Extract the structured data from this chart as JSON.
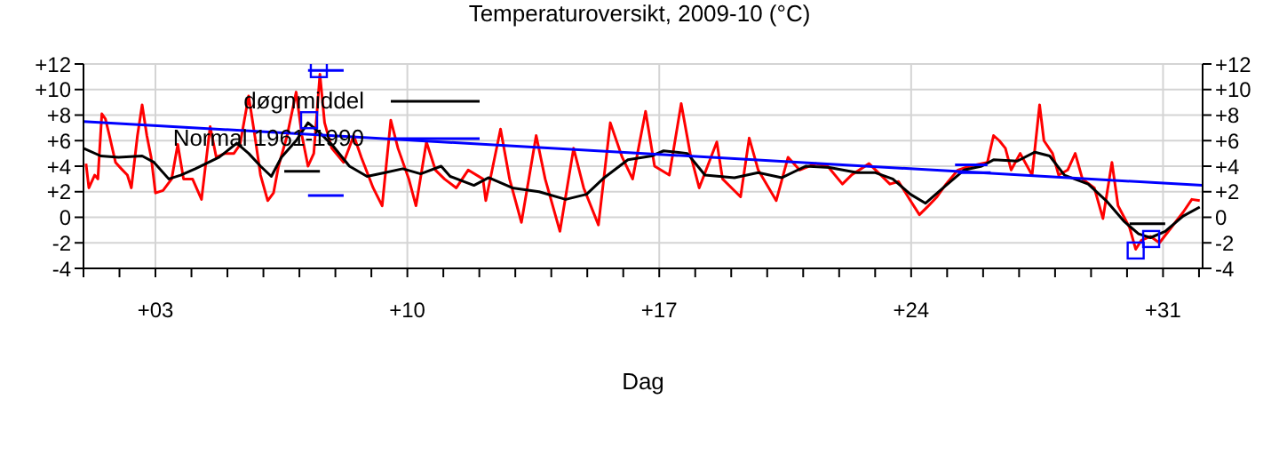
{
  "chart_data": {
    "type": "line",
    "title": "Temperaturoversikt, 2009-10 (°C)",
    "xlabel": "Dag",
    "xlim": [
      1,
      32.1
    ],
    "xticks": [
      {
        "value": 1,
        "label": null
      },
      {
        "value": 2,
        "label": null
      },
      {
        "value": 3,
        "label": "+03"
      },
      {
        "value": 4,
        "label": null
      },
      {
        "value": 5,
        "label": null
      },
      {
        "value": 6,
        "label": null
      },
      {
        "value": 7,
        "label": null
      },
      {
        "value": 8,
        "label": null
      },
      {
        "value": 9,
        "label": null
      },
      {
        "value": 10,
        "label": "+10"
      },
      {
        "value": 11,
        "label": null
      },
      {
        "value": 12,
        "label": null
      },
      {
        "value": 13,
        "label": null
      },
      {
        "value": 14,
        "label": null
      },
      {
        "value": 15,
        "label": null
      },
      {
        "value": 16,
        "label": null
      },
      {
        "value": 17,
        "label": "+17"
      },
      {
        "value": 18,
        "label": null
      },
      {
        "value": 19,
        "label": null
      },
      {
        "value": 20,
        "label": null
      },
      {
        "value": 21,
        "label": null
      },
      {
        "value": 22,
        "label": null
      },
      {
        "value": 23,
        "label": null
      },
      {
        "value": 24,
        "label": "+24"
      },
      {
        "value": 25,
        "label": null
      },
      {
        "value": 26,
        "label": null
      },
      {
        "value": 27,
        "label": null
      },
      {
        "value": 28,
        "label": null
      },
      {
        "value": 29,
        "label": null
      },
      {
        "value": 30,
        "label": null
      },
      {
        "value": 31,
        "label": "+31"
      },
      {
        "value": 32,
        "label": null
      }
    ],
    "ylim": [
      -4,
      12
    ],
    "yticks": [
      {
        "value": -4,
        "label": "-4"
      },
      {
        "value": -2,
        "label": "-2"
      },
      {
        "value": 0,
        "label": "0"
      },
      {
        "value": 2,
        "label": "+2"
      },
      {
        "value": 4,
        "label": "+4"
      },
      {
        "value": 6,
        "label": "+6"
      },
      {
        "value": 8,
        "label": "+8"
      },
      {
        "value": 10,
        "label": "+10"
      },
      {
        "value": 12,
        "label": "+12"
      }
    ],
    "y2lim": [
      -4,
      12
    ],
    "y2ticks": [
      {
        "value": -4,
        "label": "-4"
      },
      {
        "value": -2,
        "label": "-2"
      },
      {
        "value": 0,
        "label": "0"
      },
      {
        "value": 2,
        "label": "+2"
      },
      {
        "value": 4,
        "label": "+4"
      },
      {
        "value": 6,
        "label": "+6"
      },
      {
        "value": 8,
        "label": "+8"
      },
      {
        "value": 10,
        "label": "+10"
      },
      {
        "value": 12,
        "label": "+12"
      }
    ],
    "grid": true,
    "legend": "top left",
    "line_style": "solid",
    "series": [
      {
        "color": "#ff0000",
        "x": [
          1.07,
          1.15,
          1.31,
          1.4,
          1.51,
          1.61,
          1.72,
          1.89,
          2.05,
          2.22,
          2.33,
          2.5,
          2.63,
          2.76,
          2.88,
          3.0,
          3.21,
          3.45,
          3.62,
          3.78,
          4.03,
          4.28,
          4.52,
          4.69,
          4.93,
          5.18,
          5.35,
          5.59,
          5.76,
          5.92,
          6.12,
          6.28,
          6.42,
          6.66,
          6.91,
          7.07,
          7.24,
          7.4,
          7.57,
          7.7,
          7.9,
          8.23,
          8.51,
          8.72,
          9.05,
          9.3,
          9.54,
          9.74,
          10.04,
          10.24,
          10.53,
          10.78,
          11.03,
          11.36,
          11.69,
          12.1,
          12.18,
          12.59,
          12.84,
          13.17,
          13.58,
          13.83,
          14.24,
          14.62,
          14.9,
          15.31,
          15.64,
          15.97,
          16.26,
          16.62,
          16.87,
          17.28,
          17.61,
          17.86,
          18.11,
          18.6,
          18.76,
          19.26,
          19.5,
          19.75,
          20.25,
          20.58,
          20.9,
          21.35,
          21.68,
          22.09,
          22.34,
          22.83,
          23.16,
          23.41,
          23.65,
          23.98,
          24.23,
          24.48,
          24.72,
          24.97,
          25.3,
          25.63,
          26.12,
          26.29,
          26.45,
          26.62,
          26.78,
          27.03,
          27.36,
          27.57,
          27.69,
          27.93,
          28.1,
          28.35,
          28.56,
          28.76,
          29.09,
          29.33,
          29.58,
          29.75,
          30.07,
          30.24,
          30.4,
          30.65,
          30.9,
          31.23,
          31.56,
          31.8,
          32.02
        ],
        "values": [
          4.2,
          2.3,
          3.3,
          3.0,
          8.1,
          7.7,
          6.4,
          4.3,
          3.8,
          3.3,
          2.3,
          6.4,
          8.8,
          6.4,
          4.7,
          1.9,
          2.1,
          3.0,
          5.7,
          3.0,
          3.0,
          1.4,
          7.1,
          4.7,
          5.0,
          5.0,
          5.7,
          9.5,
          6.4,
          3.3,
          1.3,
          1.9,
          4.0,
          6.4,
          9.8,
          6.4,
          4.0,
          5.0,
          11.2,
          7.4,
          5.4,
          4.3,
          6.4,
          4.7,
          2.3,
          0.9,
          7.6,
          5.4,
          3.0,
          0.9,
          5.9,
          3.7,
          3.0,
          2.3,
          3.7,
          3.0,
          1.3,
          6.9,
          3.0,
          -0.4,
          6.4,
          3.0,
          -1.1,
          5.4,
          2.3,
          -0.6,
          7.4,
          4.7,
          3.0,
          8.3,
          4.0,
          3.3,
          8.9,
          5.0,
          2.3,
          5.9,
          3.0,
          1.6,
          6.2,
          3.7,
          1.3,
          4.7,
          3.7,
          4.2,
          4.0,
          2.6,
          3.3,
          4.2,
          3.3,
          2.6,
          2.8,
          1.3,
          0.2,
          0.9,
          1.6,
          2.6,
          3.7,
          4.0,
          4.3,
          6.4,
          6.0,
          5.4,
          3.7,
          5.0,
          3.3,
          8.8,
          6.0,
          5.0,
          3.3,
          3.7,
          5.0,
          3.0,
          2.3,
          -0.1,
          4.3,
          0.9,
          -0.8,
          -2.5,
          -1.8,
          -1.5,
          -2.0,
          -0.8,
          0.4,
          1.4,
          1.3
        ]
      },
      {
        "name": "døgnmiddel",
        "color": "#000000",
        "x": [
          1.0,
          1.48,
          1.97,
          2.63,
          2.96,
          3.37,
          3.7,
          4.11,
          4.77,
          5.26,
          5.59,
          5.92,
          6.22,
          6.5,
          6.91,
          7.24,
          7.57,
          7.9,
          8.39,
          8.88,
          9.38,
          9.87,
          10.37,
          10.94,
          11.19,
          11.85,
          12.26,
          12.92,
          13.66,
          14.4,
          14.98,
          15.47,
          16.13,
          16.79,
          17.12,
          17.78,
          18.27,
          19.09,
          19.75,
          20.41,
          21.07,
          21.73,
          22.5,
          22.99,
          23.49,
          23.98,
          24.4,
          24.89,
          25.47,
          25.96,
          26.29,
          26.95,
          27.44,
          27.85,
          28.26,
          28.92,
          29.42,
          29.91,
          30.32,
          30.65,
          31.06,
          31.56,
          32.02
        ],
        "values": [
          5.4,
          4.8,
          4.7,
          4.8,
          4.3,
          3.0,
          3.3,
          3.8,
          4.7,
          5.8,
          5.0,
          4.0,
          3.2,
          4.7,
          6.0,
          7.4,
          6.6,
          5.7,
          4.0,
          3.2,
          3.5,
          3.8,
          3.4,
          4.0,
          3.2,
          2.5,
          3.1,
          2.3,
          2.0,
          1.4,
          1.8,
          3.1,
          4.5,
          4.8,
          5.2,
          5.0,
          3.3,
          3.1,
          3.5,
          3.1,
          4.0,
          3.9,
          3.5,
          3.5,
          3.0,
          1.8,
          1.1,
          2.3,
          3.7,
          4.0,
          4.5,
          4.4,
          5.1,
          4.8,
          3.3,
          2.6,
          1.3,
          -0.3,
          -1.3,
          -1.6,
          -1.1,
          0.1,
          0.8
        ]
      },
      {
        "name": "Normal 1961-1990",
        "color": "#0000ff",
        "x": [
          1,
          32.1
        ],
        "values": [
          7.5,
          2.5
        ]
      },
      {
        "type": "scatter",
        "marker": "square",
        "color": "#0000ff",
        "x": [
          7.54,
          7.27,
          30.24,
          30.67
        ],
        "values": [
          11.6,
          7.6,
          -2.6,
          -1.7
        ]
      },
      {
        "color": "#0000ff",
        "x": [
          7.24,
          8.23
        ],
        "values": [
          11.5,
          11.5
        ]
      },
      {
        "color": "#000000",
        "x": [
          6.58,
          7.57
        ],
        "values": [
          3.6,
          3.6
        ]
      },
      {
        "color": "#0000ff",
        "x": [
          7.24,
          8.23
        ],
        "values": [
          1.7,
          1.7
        ]
      },
      {
        "color": "#0000ff",
        "x": [
          25.22,
          26.12
        ],
        "values": [
          4.1,
          4.1
        ]
      },
      {
        "color": "#0000ff",
        "x": [
          25.3,
          26.21
        ],
        "values": [
          3.5,
          3.5
        ]
      },
      {
        "color": "#000000",
        "x": [
          30.07,
          31.06
        ],
        "values": [
          -0.5,
          -0.5
        ]
      }
    ]
  }
}
